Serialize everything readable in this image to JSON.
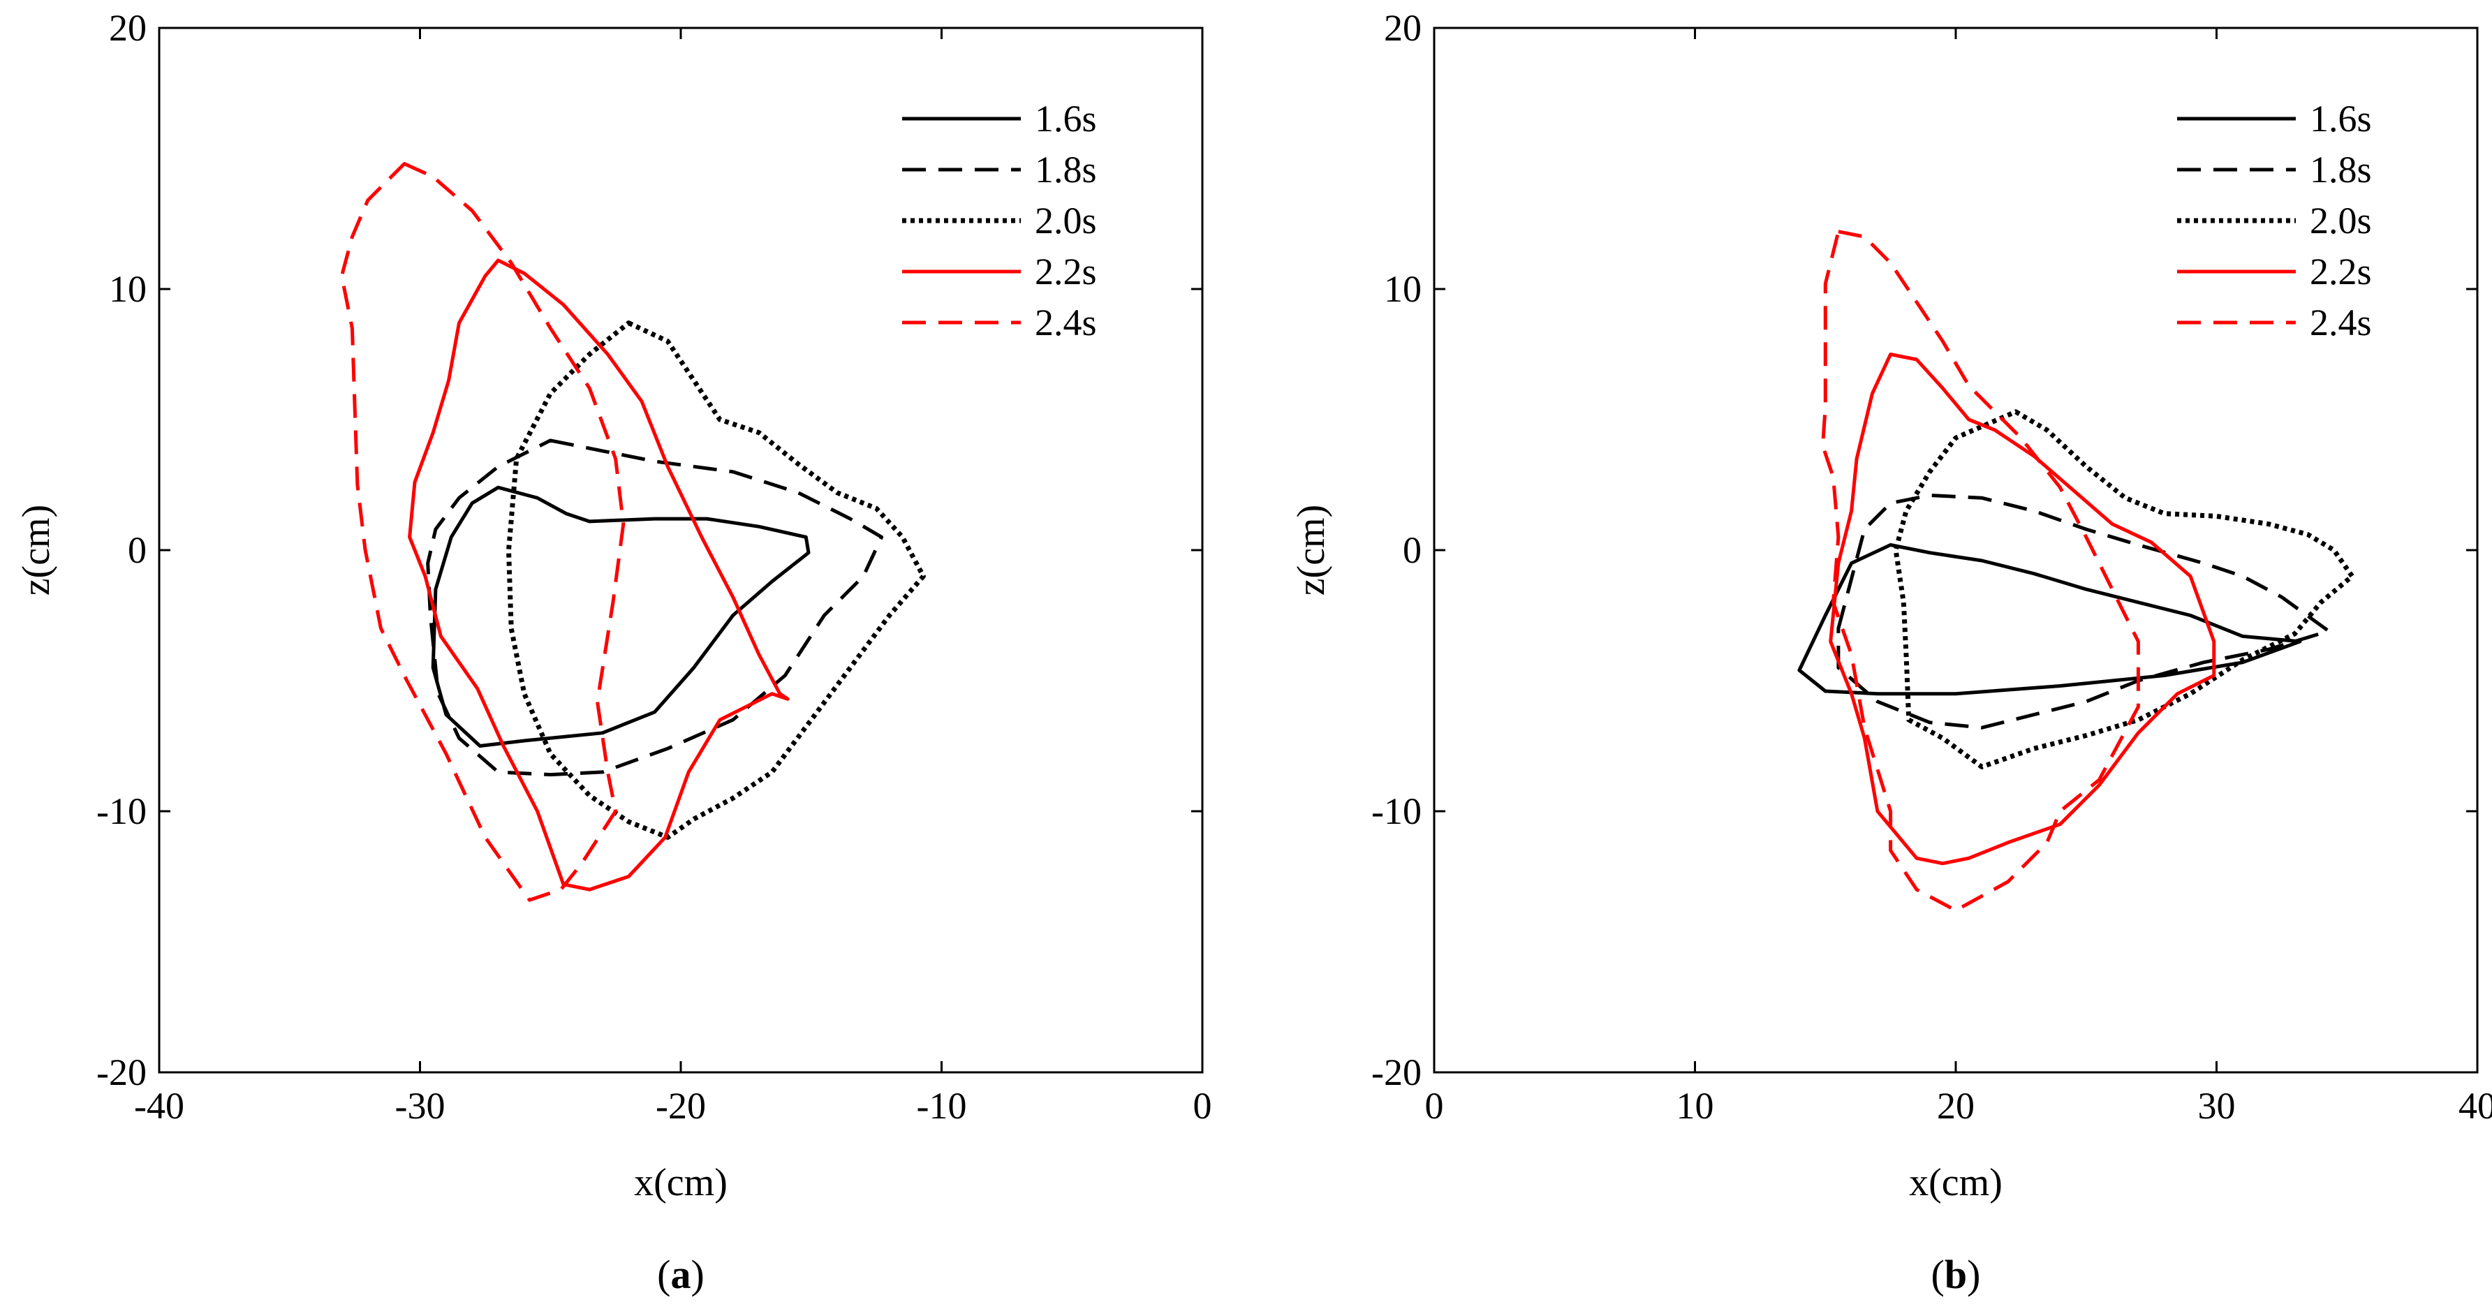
{
  "figure": {
    "colors": {
      "black": "#000000",
      "red": "#ff0000"
    },
    "series_styles": {
      "1.6s": {
        "color": "#000000",
        "dash": "solid"
      },
      "1.8s": {
        "color": "#000000",
        "dash": "dashed"
      },
      "2.0s": {
        "color": "#000000",
        "dash": "dotted"
      },
      "2.2s": {
        "color": "#ff0000",
        "dash": "solid"
      },
      "2.4s": {
        "color": "#ff0000",
        "dash": "dashed"
      }
    }
  },
  "chart_data": [
    {
      "type": "line",
      "panel_label": "(a)",
      "panel_letter": "a",
      "xlabel": "x(cm)",
      "ylabel": "z(cm)",
      "xlim": [
        -40,
        0
      ],
      "ylim": [
        -20,
        20
      ],
      "xticks": [
        -40,
        -30,
        -20,
        -10,
        0
      ],
      "yticks": [
        -20,
        -10,
        0,
        10,
        20
      ],
      "legend_position": "top-right",
      "series": [
        {
          "name": "1.6s",
          "closed": true,
          "points": [
            [
              -27,
              2.4
            ],
            [
              -25.5,
              2
            ],
            [
              -24.4,
              1.4
            ],
            [
              -23.5,
              1.1
            ],
            [
              -21,
              1.2
            ],
            [
              -19,
              1.2
            ],
            [
              -17,
              0.9
            ],
            [
              -15.2,
              0.5
            ],
            [
              -15.1,
              -0.1
            ],
            [
              -16.5,
              -1.2
            ],
            [
              -18,
              -2.5
            ],
            [
              -19.5,
              -4.5
            ],
            [
              -21,
              -6.2
            ],
            [
              -23,
              -7
            ],
            [
              -26,
              -7.3
            ],
            [
              -27.7,
              -7.5
            ],
            [
              -29,
              -6.3
            ],
            [
              -29.5,
              -4.5
            ],
            [
              -29.4,
              -1.5
            ],
            [
              -28.8,
              0.5
            ],
            [
              -28,
              1.8
            ]
          ]
        },
        {
          "name": "1.8s",
          "closed": true,
          "points": [
            [
              -25,
              4.2
            ],
            [
              -23,
              3.8
            ],
            [
              -21,
              3.4
            ],
            [
              -18,
              3
            ],
            [
              -15.5,
              2.2
            ],
            [
              -13.5,
              1.2
            ],
            [
              -12.3,
              0.5
            ],
            [
              -13,
              -1
            ],
            [
              -14.5,
              -2.5
            ],
            [
              -16,
              -4.8
            ],
            [
              -18,
              -6.5
            ],
            [
              -20.5,
              -7.6
            ],
            [
              -23,
              -8.5
            ],
            [
              -25,
              -8.6
            ],
            [
              -27,
              -8.5
            ],
            [
              -28.5,
              -7.2
            ],
            [
              -29.3,
              -5.5
            ],
            [
              -29.6,
              -2.5
            ],
            [
              -29.7,
              -0.5
            ],
            [
              -29.4,
              0.8
            ],
            [
              -28.5,
              2
            ],
            [
              -27,
              3.2
            ]
          ]
        },
        {
          "name": "2.0s",
          "closed": true,
          "points": [
            [
              -22,
              8.7
            ],
            [
              -20.5,
              8
            ],
            [
              -19.5,
              6.5
            ],
            [
              -18.5,
              5
            ],
            [
              -17,
              4.5
            ],
            [
              -15.5,
              3.3
            ],
            [
              -14,
              2.2
            ],
            [
              -12.5,
              1.6
            ],
            [
              -11.5,
              0.5
            ],
            [
              -10.7,
              -1
            ],
            [
              -12,
              -2.5
            ],
            [
              -13.5,
              -4.5
            ],
            [
              -15,
              -6.5
            ],
            [
              -16.5,
              -8.5
            ],
            [
              -18,
              -9.5
            ],
            [
              -19.5,
              -10.3
            ],
            [
              -20.5,
              -11
            ],
            [
              -22,
              -10.4
            ],
            [
              -23.5,
              -9.4
            ],
            [
              -25,
              -7.8
            ],
            [
              -26,
              -5.5
            ],
            [
              -26.5,
              -3
            ],
            [
              -26.6,
              0
            ],
            [
              -26.3,
              3.5
            ],
            [
              -25,
              6
            ],
            [
              -23.5,
              7.5
            ]
          ]
        },
        {
          "name": "2.2s",
          "closed": true,
          "points": [
            [
              -27,
              11.1
            ],
            [
              -26,
              10.6
            ],
            [
              -24.5,
              9.4
            ],
            [
              -22.8,
              7.5
            ],
            [
              -21.5,
              5.7
            ],
            [
              -20.5,
              3.2
            ],
            [
              -19.2,
              0.5
            ],
            [
              -18,
              -1.8
            ],
            [
              -17,
              -4
            ],
            [
              -16.2,
              -5.5
            ],
            [
              -15.9,
              -5.7
            ],
            [
              -16.5,
              -5.5
            ],
            [
              -18.5,
              -6.5
            ],
            [
              -19.7,
              -8.5
            ],
            [
              -20.6,
              -11
            ],
            [
              -22,
              -12.5
            ],
            [
              -23.5,
              -13
            ],
            [
              -24.5,
              -12.8
            ],
            [
              -25.5,
              -10
            ],
            [
              -26.8,
              -7.5
            ],
            [
              -27.8,
              -5.3
            ],
            [
              -29.2,
              -3.3
            ],
            [
              -29.8,
              -1
            ],
            [
              -30.4,
              0.5
            ],
            [
              -30.2,
              2.6
            ],
            [
              -29.5,
              4.5
            ],
            [
              -28.9,
              6.5
            ],
            [
              -28.5,
              8.7
            ],
            [
              -28,
              9.6
            ],
            [
              -27.5,
              10.5
            ]
          ]
        },
        {
          "name": "2.4s",
          "closed": true,
          "points": [
            [
              -30.6,
              14.8
            ],
            [
              -29.5,
              14.3
            ],
            [
              -28,
              13
            ],
            [
              -26.5,
              11
            ],
            [
              -25,
              8.5
            ],
            [
              -23.5,
              6.2
            ],
            [
              -22.5,
              3.5
            ],
            [
              -22.2,
              1
            ],
            [
              -22.6,
              -2
            ],
            [
              -23.2,
              -5.8
            ],
            [
              -22.8,
              -8.5
            ],
            [
              -22.5,
              -10
            ],
            [
              -23.8,
              -12
            ],
            [
              -24.6,
              -13
            ],
            [
              -25.8,
              -13.4
            ],
            [
              -27.5,
              -11
            ],
            [
              -29,
              -7.8
            ],
            [
              -30.5,
              -5
            ],
            [
              -31.5,
              -3
            ],
            [
              -32.1,
              0
            ],
            [
              -32.4,
              2.5
            ],
            [
              -32.5,
              5.5
            ],
            [
              -32.6,
              8.5
            ],
            [
              -33,
              10.5
            ],
            [
              -32.6,
              12
            ],
            [
              -32,
              13.4
            ]
          ]
        }
      ]
    },
    {
      "type": "line",
      "panel_label": "(b)",
      "panel_letter": "b",
      "xlabel": "x(cm)",
      "ylabel": "z(cm)",
      "xlim": [
        0,
        40
      ],
      "ylim": [
        -20,
        20
      ],
      "xticks": [
        0,
        10,
        20,
        30,
        40
      ],
      "yticks": [
        -20,
        -10,
        0,
        10,
        20
      ],
      "legend_position": "top-right",
      "series": [
        {
          "name": "1.6s",
          "closed": true,
          "points": [
            [
              14,
              -4.6
            ],
            [
              15,
              -2.5
            ],
            [
              16,
              -0.5
            ],
            [
              17.5,
              0.2
            ],
            [
              19,
              -0.1
            ],
            [
              21,
              -0.4
            ],
            [
              23,
              -0.9
            ],
            [
              25,
              -1.5
            ],
            [
              27,
              -2
            ],
            [
              29,
              -2.5
            ],
            [
              31,
              -3.3
            ],
            [
              33.2,
              -3.5
            ],
            [
              31,
              -4.3
            ],
            [
              28,
              -4.8
            ],
            [
              24,
              -5.2
            ],
            [
              20,
              -5.5
            ],
            [
              17,
              -5.5
            ],
            [
              15,
              -5.4
            ]
          ]
        },
        {
          "name": "1.8s",
          "closed": true,
          "points": [
            [
              15.5,
              -3
            ],
            [
              16.5,
              0.8
            ],
            [
              17.5,
              1.8
            ],
            [
              19,
              2.1
            ],
            [
              21,
              2
            ],
            [
              23,
              1.5
            ],
            [
              25,
              0.8
            ],
            [
              27,
              0.2
            ],
            [
              29.5,
              -0.5
            ],
            [
              31,
              -1
            ],
            [
              32.5,
              -1.8
            ],
            [
              34.3,
              -3.1
            ],
            [
              32,
              -3.8
            ],
            [
              29.5,
              -4.3
            ],
            [
              27,
              -5
            ],
            [
              25,
              -5.8
            ],
            [
              23,
              -6.3
            ],
            [
              21,
              -6.8
            ],
            [
              19,
              -6.6
            ],
            [
              17,
              -5.8
            ],
            [
              15.5,
              -4.5
            ]
          ]
        },
        {
          "name": "2.0s",
          "closed": true,
          "points": [
            [
              22.3,
              5.3
            ],
            [
              23.5,
              4.6
            ],
            [
              25,
              3.2
            ],
            [
              26.5,
              2
            ],
            [
              28,
              1.4
            ],
            [
              30,
              1.3
            ],
            [
              32,
              1
            ],
            [
              33.5,
              0.6
            ],
            [
              34.5,
              0
            ],
            [
              35.2,
              -1
            ],
            [
              34,
              -2
            ],
            [
              33,
              -3.2
            ],
            [
              31,
              -4.2
            ],
            [
              29,
              -5.5
            ],
            [
              27,
              -6.5
            ],
            [
              25,
              -7.1
            ],
            [
              23,
              -7.6
            ],
            [
              21,
              -8.3
            ],
            [
              19.5,
              -7.2
            ],
            [
              18.2,
              -6.5
            ],
            [
              18.1,
              -4
            ],
            [
              18,
              -2
            ],
            [
              17.7,
              0
            ],
            [
              18.1,
              1.5
            ],
            [
              19,
              3
            ],
            [
              20,
              4.3
            ]
          ]
        },
        {
          "name": "2.2s",
          "closed": true,
          "points": [
            [
              17.5,
              7.5
            ],
            [
              18.5,
              7.3
            ],
            [
              19.5,
              6.2
            ],
            [
              20.5,
              5
            ],
            [
              21.5,
              4.6
            ],
            [
              23,
              3.6
            ],
            [
              24.5,
              2.3
            ],
            [
              26,
              1
            ],
            [
              27.5,
              0.3
            ],
            [
              29,
              -1
            ],
            [
              29.9,
              -3.5
            ],
            [
              29.9,
              -4.8
            ],
            [
              28.5,
              -5.5
            ],
            [
              27,
              -7
            ],
            [
              25.5,
              -9
            ],
            [
              24,
              -10.5
            ],
            [
              22,
              -11.2
            ],
            [
              20.5,
              -11.8
            ],
            [
              19.5,
              -12
            ],
            [
              18.5,
              -11.8
            ],
            [
              17,
              -10
            ],
            [
              16.5,
              -7.2
            ],
            [
              16,
              -5.5
            ],
            [
              15.2,
              -3.5
            ],
            [
              15.5,
              -0.5
            ],
            [
              16,
              1.5
            ],
            [
              16.2,
              3.5
            ],
            [
              16.8,
              6
            ]
          ]
        },
        {
          "name": "2.4s",
          "closed": true,
          "points": [
            [
              15.5,
              12.2
            ],
            [
              16.5,
              12
            ],
            [
              17.5,
              11
            ],
            [
              18.5,
              9.5
            ],
            [
              19.5,
              8
            ],
            [
              20.5,
              6.3
            ],
            [
              21.5,
              5.3
            ],
            [
              22.5,
              4.3
            ],
            [
              24,
              2.4
            ],
            [
              25,
              0.5
            ],
            [
              26,
              -1.5
            ],
            [
              27,
              -3.5
            ],
            [
              27,
              -6
            ],
            [
              25.5,
              -8.8
            ],
            [
              24,
              -10
            ],
            [
              23.5,
              -11.2
            ],
            [
              22,
              -12.7
            ],
            [
              20,
              -13.8
            ],
            [
              18.5,
              -13
            ],
            [
              17.5,
              -11.5
            ],
            [
              17.5,
              -10
            ],
            [
              16.5,
              -6.8
            ],
            [
              16,
              -4
            ],
            [
              15.3,
              -2
            ],
            [
              15.5,
              0.5
            ],
            [
              15.3,
              2.8
            ],
            [
              14.9,
              4
            ],
            [
              15,
              5.5
            ],
            [
              15,
              10.2
            ]
          ]
        }
      ]
    }
  ]
}
